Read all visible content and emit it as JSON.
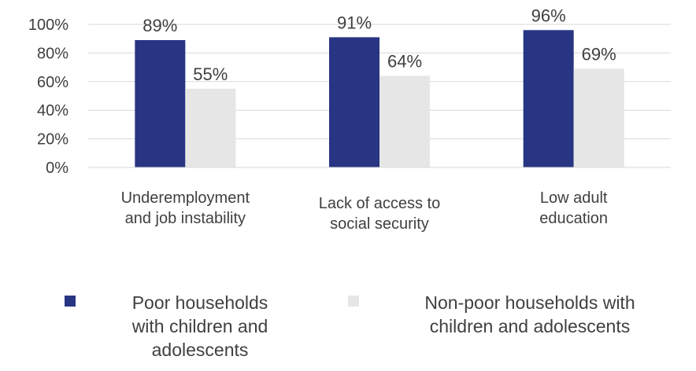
{
  "chart_data": {
    "type": "bar",
    "categories": [
      "Underemployment and job instability",
      "Lack of access to social security",
      "Low adult education"
    ],
    "category_lines": [
      [
        "Underemployment",
        "and job instability"
      ],
      [
        "Lack of access to",
        "social security"
      ],
      [
        "Low adult",
        "education"
      ]
    ],
    "series": [
      {
        "name": "Poor households with children and adolescents",
        "values": [
          89,
          91,
          96
        ],
        "labels": [
          "89%",
          "91%",
          "96%"
        ],
        "color": "#283583"
      },
      {
        "name": "Non-poor households with children and adolescents",
        "values": [
          55,
          64,
          69
        ],
        "labels": [
          "55%",
          "64%",
          "69%"
        ],
        "color": "#e6e6e6"
      }
    ],
    "yticks": [
      "0%",
      "20%",
      "40%",
      "60%",
      "80%",
      "100%"
    ],
    "ylim": [
      0,
      100
    ],
    "grid": true,
    "legend_position": "bottom",
    "title": "",
    "xlabel": "",
    "ylabel": ""
  },
  "legend": {
    "poor_lines": [
      "Poor households",
      "with children and",
      "adolescents"
    ],
    "nonpoor_lines": [
      "Non-poor households with",
      "children and adolescents"
    ]
  }
}
